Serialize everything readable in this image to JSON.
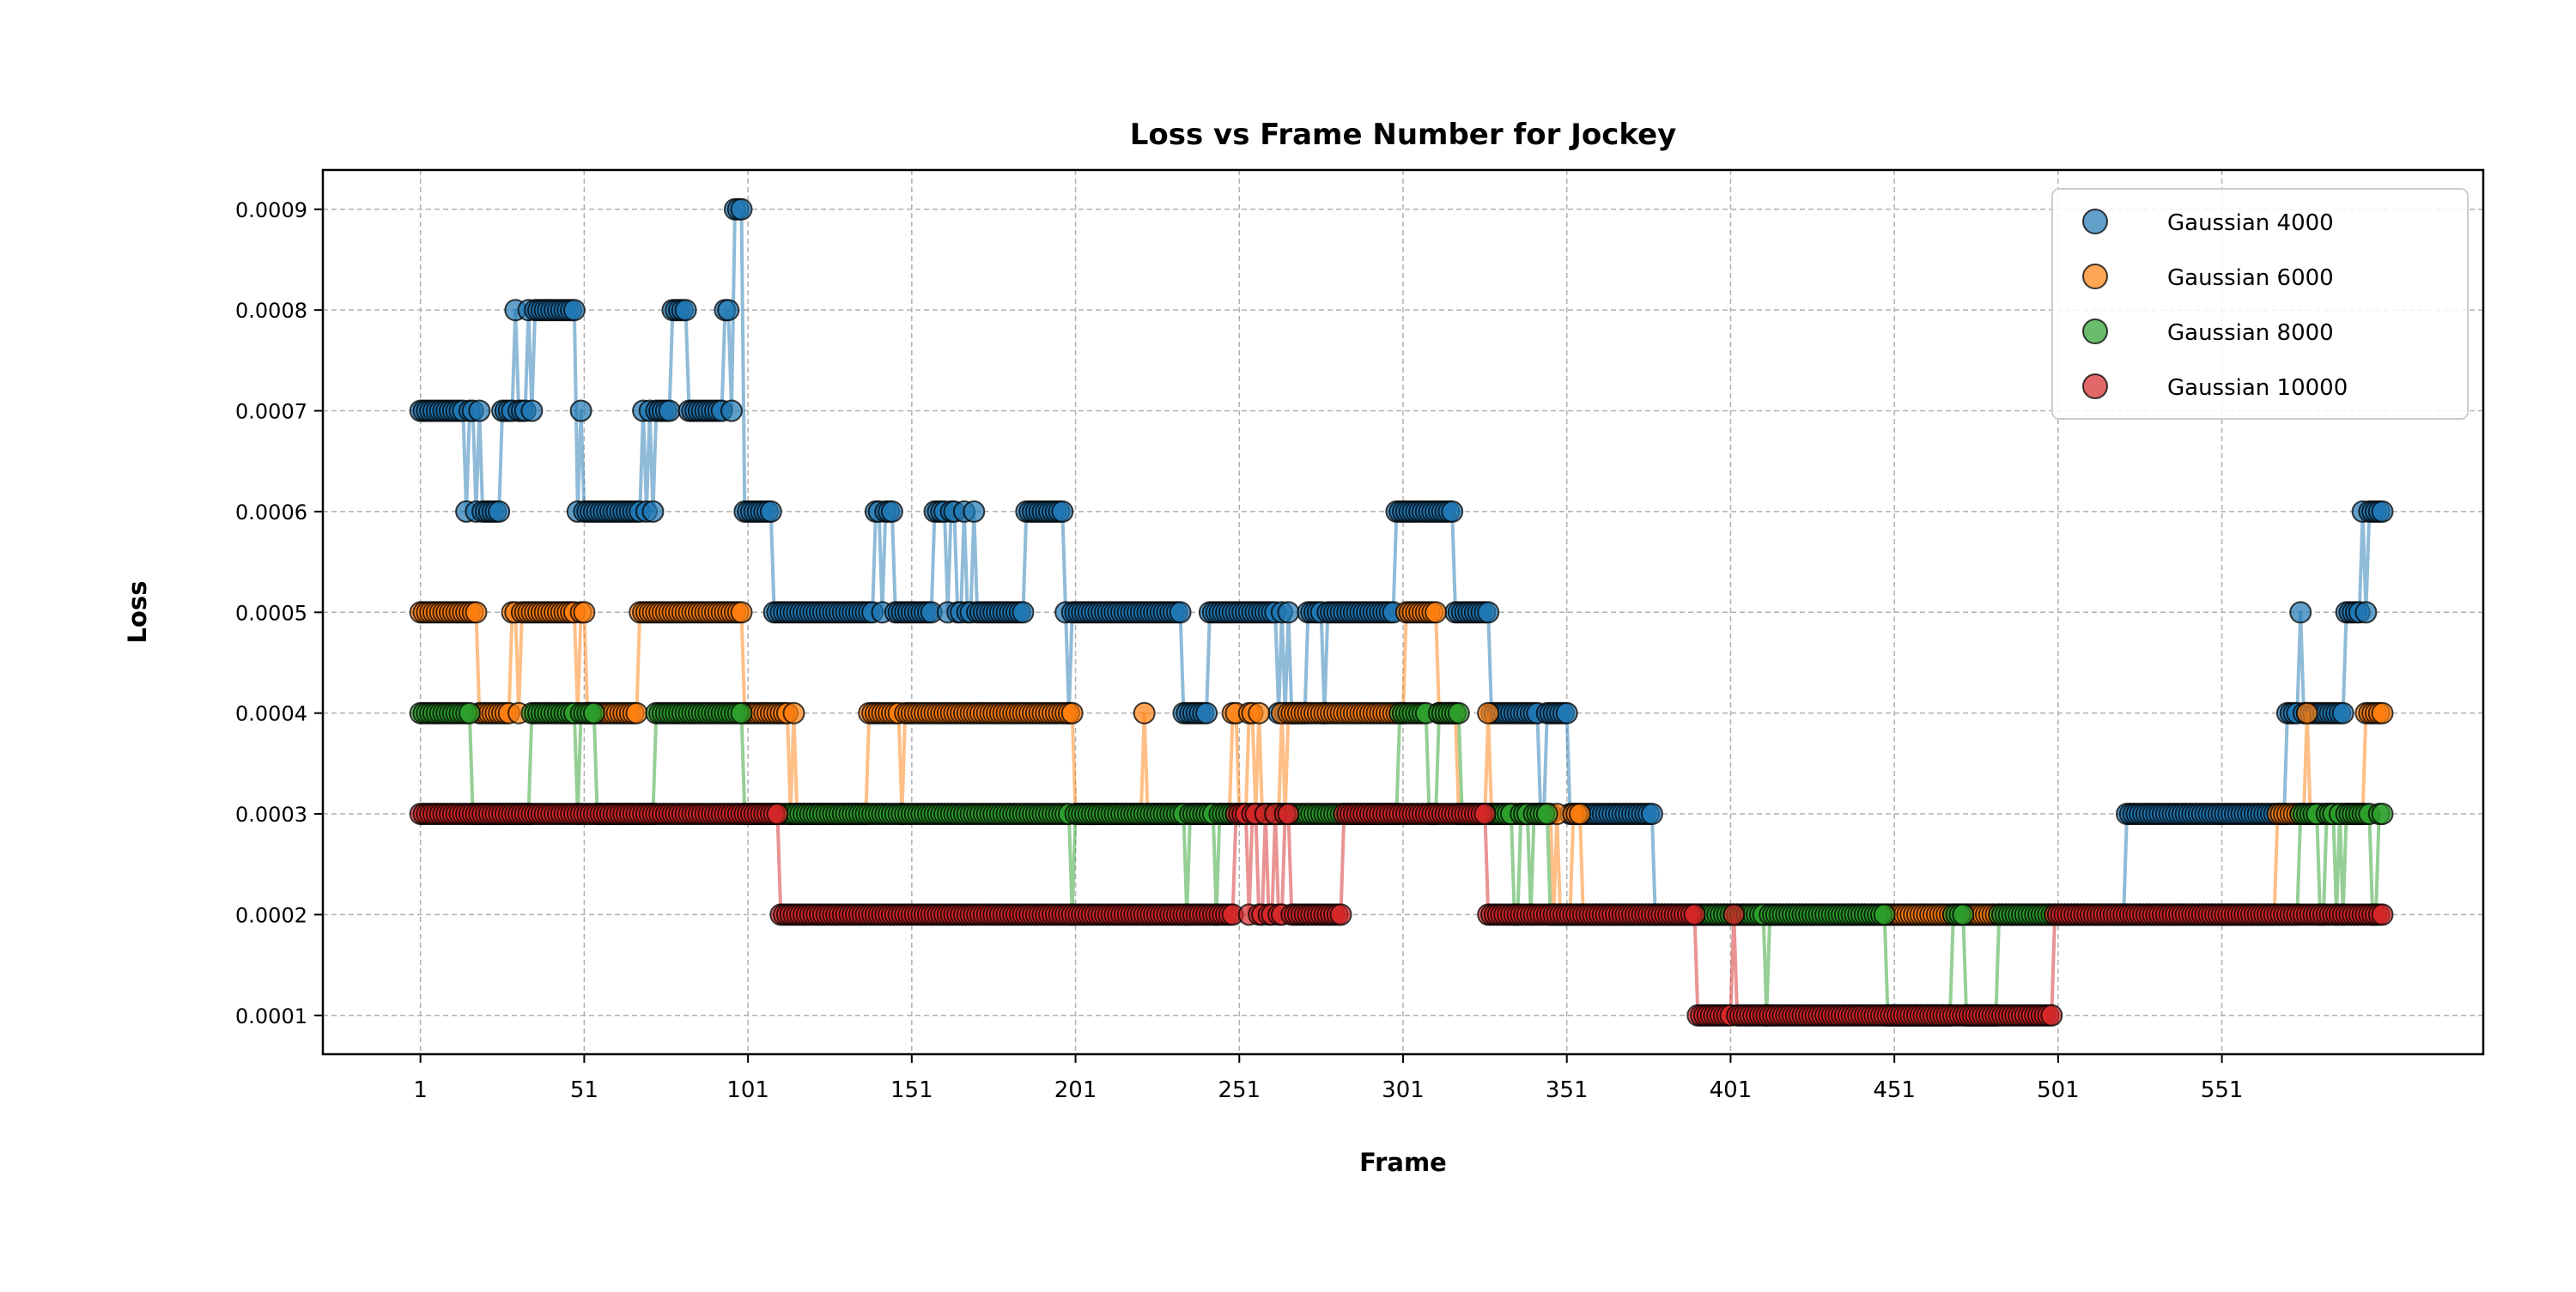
{
  "chart_data": {
    "type": "line",
    "title": "Loss vs Frame Number for Jockey",
    "xlabel": "Frame",
    "ylabel": "Loss",
    "xlim": [
      -28.8,
      630.8
    ],
    "ylim": [
      6.15e-05,
      0.000939
    ],
    "x_ticks": [
      1,
      51,
      101,
      151,
      201,
      251,
      301,
      351,
      401,
      451,
      501,
      551
    ],
    "y_ticks": [
      0.0001,
      0.0002,
      0.0003,
      0.0004,
      0.0005,
      0.0006,
      0.0007,
      0.0008,
      0.0009
    ],
    "y_tick_labels": [
      "0.0001",
      "0.0002",
      "0.0003",
      "0.0004",
      "0.0005",
      "0.0006",
      "0.0007",
      "0.0008",
      "0.0009"
    ],
    "grid": true,
    "legend_position": "top-right",
    "note_values": "Loss per frame for frames 1-600, run-length encoded as [start_frame, end_frame, loss] segments read off the plot.",
    "series": [
      {
        "name": "Gaussian 4000",
        "color": "#1f77b4",
        "segments": [
          [
            1,
            14,
            0.0007
          ],
          [
            15,
            15,
            0.0006
          ],
          [
            16,
            17,
            0.0007
          ],
          [
            18,
            18,
            0.0006
          ],
          [
            19,
            19,
            0.0007
          ],
          [
            20,
            25,
            0.0006
          ],
          [
            26,
            29,
            0.0007
          ],
          [
            30,
            30,
            0.0008
          ],
          [
            31,
            33,
            0.0007
          ],
          [
            34,
            34,
            0.0008
          ],
          [
            35,
            35,
            0.0007
          ],
          [
            36,
            48,
            0.0008
          ],
          [
            49,
            49,
            0.0006
          ],
          [
            50,
            50,
            0.0007
          ],
          [
            51,
            68,
            0.0006
          ],
          [
            69,
            69,
            0.0007
          ],
          [
            70,
            70,
            0.0006
          ],
          [
            71,
            71,
            0.0007
          ],
          [
            72,
            72,
            0.0006
          ],
          [
            73,
            77,
            0.0007
          ],
          [
            78,
            82,
            0.0008
          ],
          [
            83,
            93,
            0.0007
          ],
          [
            94,
            95,
            0.0008
          ],
          [
            96,
            96,
            0.0007
          ],
          [
            97,
            99,
            0.0009
          ],
          [
            100,
            108,
            0.0006
          ],
          [
            109,
            139,
            0.0005
          ],
          [
            140,
            141,
            0.0006
          ],
          [
            142,
            142,
            0.0005
          ],
          [
            143,
            145,
            0.0006
          ],
          [
            146,
            157,
            0.0005
          ],
          [
            158,
            161,
            0.0006
          ],
          [
            162,
            162,
            0.0005
          ],
          [
            163,
            164,
            0.0006
          ],
          [
            165,
            166,
            0.0005
          ],
          [
            167,
            167,
            0.0006
          ],
          [
            168,
            169,
            0.0005
          ],
          [
            170,
            170,
            0.0006
          ],
          [
            171,
            185,
            0.0005
          ],
          [
            186,
            197,
            0.0006
          ],
          [
            198,
            198,
            0.0005
          ],
          [
            199,
            199,
            0.0004
          ],
          [
            200,
            233,
            0.0005
          ],
          [
            234,
            241,
            0.0004
          ],
          [
            242,
            262,
            0.0005
          ],
          [
            263,
            263,
            0.0004
          ],
          [
            264,
            264,
            0.0005
          ],
          [
            265,
            265,
            0.0004
          ],
          [
            266,
            266,
            0.0005
          ],
          [
            267,
            271,
            0.0004
          ],
          [
            272,
            276,
            0.0005
          ],
          [
            277,
            277,
            0.0004
          ],
          [
            278,
            298,
            0.0005
          ],
          [
            299,
            316,
            0.0006
          ],
          [
            317,
            327,
            0.0005
          ],
          [
            328,
            342,
            0.0004
          ],
          [
            343,
            344,
            0.0003
          ],
          [
            345,
            351,
            0.0004
          ],
          [
            352,
            377,
            0.0003
          ],
          [
            378,
            521,
            0.0002
          ],
          [
            522,
            570,
            0.0003
          ],
          [
            571,
            574,
            0.0004
          ],
          [
            575,
            575,
            0.0005
          ],
          [
            576,
            588,
            0.0004
          ],
          [
            589,
            593,
            0.0005
          ],
          [
            594,
            594,
            0.0006
          ],
          [
            595,
            595,
            0.0005
          ],
          [
            596,
            600,
            0.0006
          ]
        ]
      },
      {
        "name": "Gaussian 6000",
        "color": "#ff7f0e",
        "segments": [
          [
            1,
            18,
            0.0005
          ],
          [
            19,
            28,
            0.0004
          ],
          [
            29,
            30,
            0.0005
          ],
          [
            31,
            31,
            0.0004
          ],
          [
            32,
            48,
            0.0005
          ],
          [
            49,
            49,
            0.0004
          ],
          [
            50,
            51,
            0.0005
          ],
          [
            52,
            67,
            0.0004
          ],
          [
            68,
            99,
            0.0005
          ],
          [
            100,
            113,
            0.0004
          ],
          [
            114,
            114,
            0.0003
          ],
          [
            115,
            115,
            0.0004
          ],
          [
            116,
            137,
            0.0003
          ],
          [
            138,
            147,
            0.0004
          ],
          [
            148,
            148,
            0.0003
          ],
          [
            149,
            200,
            0.0004
          ],
          [
            201,
            221,
            0.0003
          ],
          [
            222,
            222,
            0.0004
          ],
          [
            223,
            248,
            0.0003
          ],
          [
            249,
            250,
            0.0004
          ],
          [
            251,
            253,
            0.0003
          ],
          [
            254,
            255,
            0.0004
          ],
          [
            256,
            256,
            0.0003
          ],
          [
            257,
            257,
            0.0004
          ],
          [
            258,
            263,
            0.0003
          ],
          [
            264,
            264,
            0.0004
          ],
          [
            265,
            265,
            0.0003
          ],
          [
            266,
            280,
            0.0004
          ],
          [
            281,
            301,
            0.0004
          ],
          [
            302,
            311,
            0.0005
          ],
          [
            312,
            317,
            0.0004
          ],
          [
            318,
            326,
            0.0003
          ],
          [
            327,
            327,
            0.0004
          ],
          [
            328,
            346,
            0.0003
          ],
          [
            347,
            347,
            0.0002
          ],
          [
            348,
            348,
            0.0003
          ],
          [
            349,
            352,
            0.0002
          ],
          [
            353,
            355,
            0.0003
          ],
          [
            356,
            567,
            0.0002
          ],
          [
            568,
            576,
            0.0003
          ],
          [
            577,
            577,
            0.0004
          ],
          [
            578,
            594,
            0.0003
          ],
          [
            595,
            600,
            0.0004
          ]
        ]
      },
      {
        "name": "Gaussian 8000",
        "color": "#2ca02c",
        "segments": [
          [
            1,
            16,
            0.0004
          ],
          [
            17,
            34,
            0.0003
          ],
          [
            35,
            48,
            0.0004
          ],
          [
            49,
            49,
            0.0003
          ],
          [
            50,
            54,
            0.0004
          ],
          [
            55,
            72,
            0.0003
          ],
          [
            73,
            99,
            0.0004
          ],
          [
            100,
            199,
            0.0003
          ],
          [
            200,
            200,
            0.0002
          ],
          [
            201,
            234,
            0.0003
          ],
          [
            235,
            235,
            0.0002
          ],
          [
            236,
            243,
            0.0003
          ],
          [
            244,
            244,
            0.0002
          ],
          [
            245,
            299,
            0.0003
          ],
          [
            300,
            308,
            0.0004
          ],
          [
            309,
            311,
            0.0003
          ],
          [
            312,
            318,
            0.0004
          ],
          [
            319,
            334,
            0.0003
          ],
          [
            335,
            336,
            0.0002
          ],
          [
            337,
            339,
            0.0003
          ],
          [
            340,
            340,
            0.0002
          ],
          [
            341,
            345,
            0.0003
          ],
          [
            346,
            411,
            0.0002
          ],
          [
            412,
            412,
            0.0001
          ],
          [
            413,
            448,
            0.0002
          ],
          [
            449,
            468,
            0.0001
          ],
          [
            469,
            472,
            0.0002
          ],
          [
            473,
            482,
            0.0001
          ],
          [
            483,
            574,
            0.0002
          ],
          [
            575,
            580,
            0.0003
          ],
          [
            581,
            582,
            0.0002
          ],
          [
            583,
            585,
            0.0003
          ],
          [
            586,
            586,
            0.0002
          ],
          [
            587,
            587,
            0.0003
          ],
          [
            588,
            588,
            0.0002
          ],
          [
            589,
            596,
            0.0003
          ],
          [
            597,
            598,
            0.0002
          ],
          [
            599,
            600,
            0.0003
          ]
        ]
      },
      {
        "name": "Gaussian 10000",
        "color": "#d62728",
        "segments": [
          [
            1,
            110,
            0.0003
          ],
          [
            111,
            249,
            0.0002
          ],
          [
            250,
            253,
            0.0003
          ],
          [
            254,
            254,
            0.0002
          ],
          [
            255,
            256,
            0.0003
          ],
          [
            257,
            258,
            0.0002
          ],
          [
            259,
            259,
            0.0003
          ],
          [
            260,
            261,
            0.0002
          ],
          [
            262,
            262,
            0.0003
          ],
          [
            263,
            264,
            0.0002
          ],
          [
            265,
            266,
            0.0003
          ],
          [
            267,
            282,
            0.0002
          ],
          [
            283,
            326,
            0.0003
          ],
          [
            327,
            390,
            0.0002
          ],
          [
            391,
            401,
            0.0001
          ],
          [
            402,
            402,
            0.0002
          ],
          [
            403,
            499,
            0.0001
          ],
          [
            500,
            600,
            0.0002
          ]
        ]
      }
    ]
  }
}
